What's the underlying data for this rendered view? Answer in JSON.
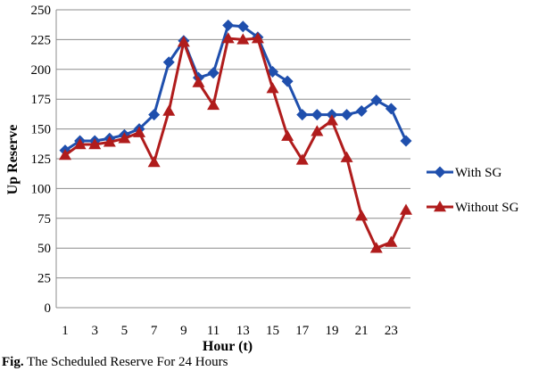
{
  "chart_data": {
    "type": "line",
    "xlabel": "Hour (t)",
    "ylabel": "Up Reserve",
    "ylim": [
      0,
      250
    ],
    "xlim": [
      1,
      24
    ],
    "yticks": [
      0,
      25,
      50,
      75,
      100,
      125,
      150,
      175,
      200,
      225,
      250
    ],
    "xtick_labels": [
      "1",
      "3",
      "5",
      "7",
      "9",
      "11",
      "13",
      "15",
      "17",
      "19",
      "21",
      "23"
    ],
    "grid": "horizontal",
    "legend_position": "right",
    "x": [
      1,
      2,
      3,
      4,
      5,
      6,
      7,
      8,
      9,
      10,
      11,
      12,
      13,
      14,
      15,
      16,
      17,
      18,
      19,
      20,
      21,
      22,
      23,
      24
    ],
    "series": [
      {
        "name": "With SG",
        "color": "#1f4fad",
        "marker": "diamond",
        "values": [
          132,
          140,
          140,
          142,
          145,
          150,
          162,
          206,
          224,
          193,
          197,
          237,
          236,
          227,
          198,
          190,
          162,
          162,
          162,
          162,
          165,
          174,
          167,
          140
        ]
      },
      {
        "name": "Without SG",
        "color": "#b01c1c",
        "marker": "triangle",
        "values": [
          128,
          137,
          137,
          139,
          142,
          147,
          122,
          165,
          223,
          189,
          170,
          226,
          225,
          226,
          184,
          144,
          124,
          148,
          157,
          126,
          77,
          50,
          55,
          82
        ]
      }
    ]
  },
  "caption": {
    "label": "Fig.",
    "text": "The Scheduled Reserve For 24 Hours"
  }
}
